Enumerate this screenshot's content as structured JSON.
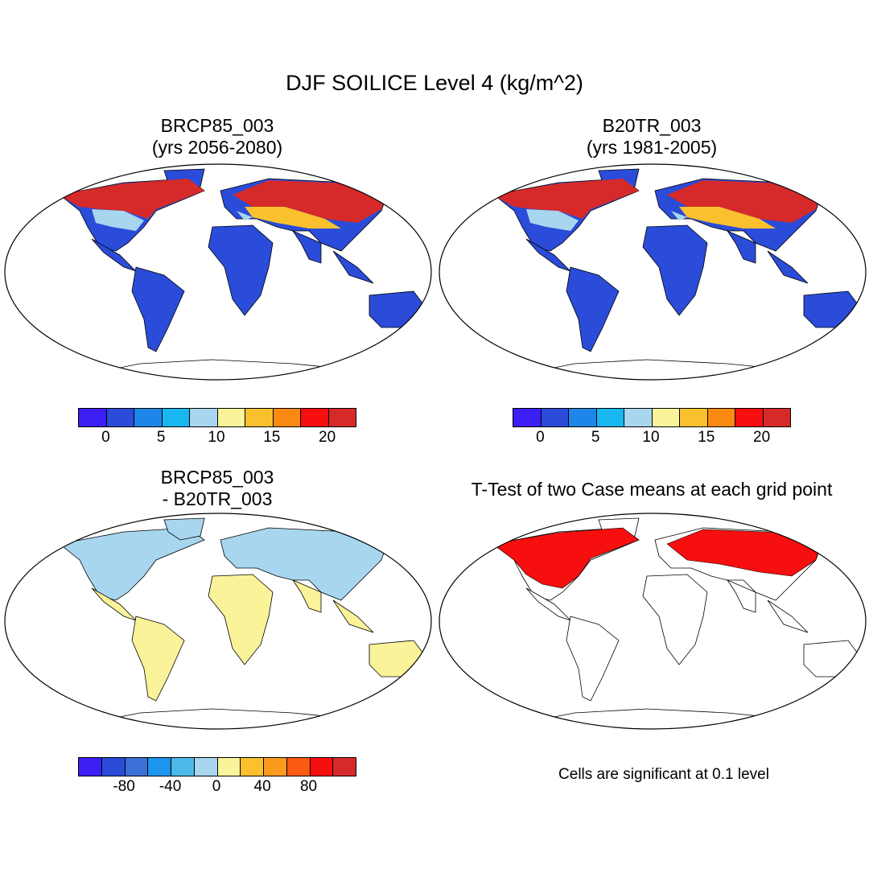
{
  "figure_title": "DJF SOILICE Level 4 (kg/m^2)",
  "panels": [
    {
      "id": "case1",
      "title_line1": "BRCP85_003",
      "title_line2": "(yrs 2056-2080)"
    },
    {
      "id": "case2",
      "title_line1": "B20TR_003",
      "title_line2": "(yrs 1981-2005)"
    },
    {
      "id": "diff",
      "title_line1": "BRCP85_003",
      "title_line2": "- B20TR_003"
    },
    {
      "id": "ttest",
      "title_line1": "T-Test of two Case means at each grid point"
    }
  ],
  "colorbars": {
    "cases": {
      "colors": [
        "#3b1ff5",
        "#2a4cd9",
        "#1e86e8",
        "#18b7f0",
        "#a8d6ef",
        "#fbf39a",
        "#fbc02d",
        "#fb8a12",
        "#f70f0f",
        "#d62a2a"
      ],
      "tick_labels": [
        "0",
        "5",
        "10",
        "15",
        "20"
      ]
    },
    "diff": {
      "colors": [
        "#3b1ff5",
        "#2a4cd9",
        "#3d6fd8",
        "#1b95ee",
        "#4cb9e8",
        "#a8d6ef",
        "#fbf39a",
        "#fbc02d",
        "#fb9a1f",
        "#fb5a12",
        "#f70f0f",
        "#d62a2a"
      ],
      "tick_labels": [
        "-80",
        "-40",
        "0",
        "40",
        "80"
      ]
    }
  },
  "ttest_note": "Cells are significant at 0.1 level",
  "map_colors": {
    "case_land_base": "#2a4cd9",
    "case_cold": "#d62a2a",
    "case_warm": "#f70f0f",
    "case_mid": "#fbc02d",
    "case_cool": "#a8d6ef",
    "diff_north": "#a8d6ef",
    "diff_south": "#fbf39a",
    "ttest_sig": "#f70f0f"
  }
}
